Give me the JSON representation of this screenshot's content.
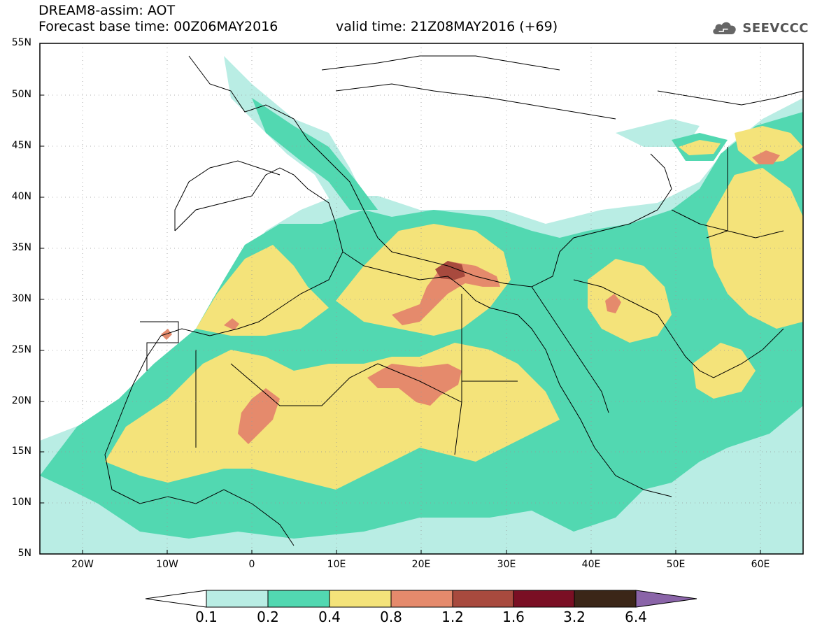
{
  "header": {
    "title": "DREAM8-assim: AOT",
    "forecast_base": "Forecast base time: 00Z06MAY2016",
    "valid_time": "valid time: 21Z08MAY2016 (+69)",
    "logo_text": "SEEVCCC"
  },
  "map": {
    "lat_labels": [
      "55N",
      "50N",
      "45N",
      "40N",
      "35N",
      "30N",
      "25N",
      "20N",
      "15N",
      "10N",
      "5N"
    ],
    "lon_labels": [
      "20W",
      "10W",
      "0",
      "10E",
      "20E",
      "30E",
      "40E",
      "50E",
      "60E"
    ],
    "lon_range": [
      -25,
      65
    ],
    "lat_range": [
      5,
      55
    ]
  },
  "legend": {
    "labels": [
      "0.1",
      "0.2",
      "0.4",
      "0.8",
      "1.2",
      "1.6",
      "3.2",
      "6.4"
    ],
    "colors": [
      "#ffffff",
      "#b9ede4",
      "#52d8b1",
      "#f4e37a",
      "#e58a6c",
      "#a84a3e",
      "#7a0f24",
      "#3b2618",
      "#8a64a8"
    ]
  }
}
